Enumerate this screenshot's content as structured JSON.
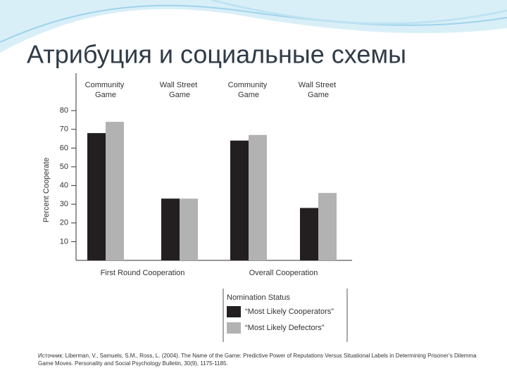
{
  "slide": {
    "title": "Атрибуция и социальные схемы",
    "source": "Источник: Liberman, V., Samuels, S.M., Ross, L. (2004). The Name of the Game: Predictive Power of Reputations Versus Situational Labels in Determining Prisoner’s Dilemma Game Moves. Personality and Social Psychology Bulletin, 30(9), 1175-1185."
  },
  "chart_data": {
    "type": "bar",
    "categories": [
      "Community Game",
      "Wall Street Game",
      "Community Game",
      "Wall Street Game"
    ],
    "groups": [
      "First Round Cooperation",
      "Overall Cooperation"
    ],
    "y_label": "Percent Cooperate",
    "legend_title": "Nomination Status",
    "series": [
      {
        "name": "“Most Likely Cooperators”",
        "color": "#231f20",
        "values": [
          68,
          33,
          64,
          28
        ]
      },
      {
        "name": "“Most Likely Defectors”",
        "color": "#b2b2b2",
        "values": [
          74,
          33,
          67,
          36
        ]
      }
    ],
    "ylim": [
      0,
      100
    ],
    "yticks": [
      10,
      20,
      30,
      40,
      50,
      60,
      70,
      80
    ]
  }
}
